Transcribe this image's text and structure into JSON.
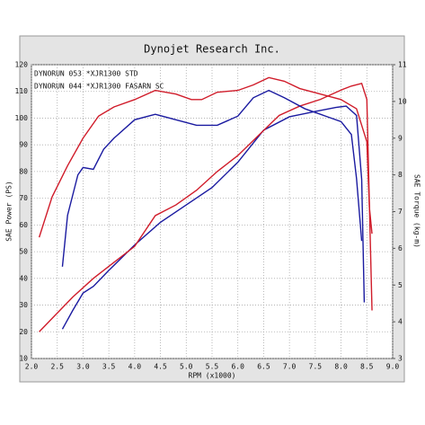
{
  "chart_data": {
    "type": "line",
    "title": "Dynojet Research Inc.",
    "x_label": "RPM (x1000)",
    "y_label": "SAE Power (PS)",
    "y2_label": "SAE Torque (kg-m)",
    "xlim": [
      2,
      9
    ],
    "ylim": [
      10,
      120
    ],
    "y2lim": [
      3,
      11
    ],
    "grid": true,
    "legend": "upper left",
    "xticks": [
      {
        "value": 2,
        "label": "2.0"
      },
      2.5,
      {
        "value": 3,
        "label": "3.0"
      },
      3.5,
      {
        "value": 4,
        "label": "4.0"
      },
      4.5,
      {
        "value": 5,
        "label": "5.0"
      },
      5.5,
      {
        "value": 6,
        "label": "6.0"
      },
      6.5,
      {
        "value": 7,
        "label": "7.0"
      },
      7.5,
      {
        "value": 8,
        "label": "8.0"
      },
      8.5,
      {
        "value": 9,
        "label": "9.0"
      }
    ],
    "yticks": [
      10,
      20,
      30,
      40,
      50,
      60,
      70,
      80,
      90,
      100,
      110,
      120
    ],
    "y2ticks": [
      3,
      4,
      5,
      6,
      7,
      8,
      9,
      10,
      11
    ],
    "series": [
      {
        "name": "DYNORUN 053  *XJR1300 STD",
        "color": "#1a1aa0",
        "axis": "y",
        "x": [
          2.6,
          2.8,
          3.0,
          3.2,
          3.5,
          4.0,
          4.5,
          5.0,
          5.5,
          6.0,
          6.5,
          7.0,
          7.5,
          7.9,
          8.1,
          8.3,
          8.4,
          8.45
        ],
        "values": [
          21,
          28,
          34.5,
          37,
          43,
          52.5,
          61,
          67.5,
          74,
          83.5,
          95.5,
          100.5,
          102.5,
          104,
          104.5,
          101,
          77,
          31
        ]
      },
      {
        "name": "DYNORUN 044  *XJR1300 FASARN SC",
        "color": "#d01c2a",
        "axis": "y",
        "x": [
          2.15,
          2.4,
          2.8,
          3.2,
          3.6,
          4.0,
          4.4,
          4.8,
          5.2,
          5.6,
          6.0,
          6.4,
          6.8,
          7.2,
          7.6,
          8.0,
          8.2,
          8.4,
          8.5,
          8.55,
          8.6
        ],
        "values": [
          20,
          25,
          33,
          40,
          46,
          52,
          63.5,
          67.5,
          73,
          80,
          86,
          93.5,
          101,
          104.5,
          107,
          110.5,
          112,
          113,
          107,
          67,
          28
        ]
      },
      {
        "color": "#1a1aa0",
        "axis": "y2",
        "x": [
          2.6,
          2.7,
          2.9,
          3.0,
          3.2,
          3.4,
          3.6,
          4.0,
          4.4,
          4.8,
          5.2,
          5.6,
          6.0,
          6.3,
          6.6,
          6.9,
          7.3,
          7.7,
          8.0,
          8.2,
          8.3,
          8.4
        ],
        "values": [
          5.5,
          6.9,
          8.0,
          8.2,
          8.15,
          8.7,
          9.0,
          9.5,
          9.65,
          9.5,
          9.35,
          9.35,
          9.6,
          10.1,
          10.3,
          10.1,
          9.8,
          9.6,
          9.45,
          9.1,
          7.9,
          6.2
        ]
      },
      {
        "color": "#d01c2a",
        "axis": "y2",
        "x": [
          2.15,
          2.4,
          2.7,
          3.0,
          3.3,
          3.6,
          4.0,
          4.4,
          4.8,
          5.1,
          5.3,
          5.6,
          6.0,
          6.3,
          6.6,
          6.9,
          7.2,
          7.6,
          8.0,
          8.3,
          8.5,
          8.55,
          8.6
        ],
        "values": [
          6.3,
          7.4,
          8.25,
          9.0,
          9.6,
          9.85,
          10.05,
          10.3,
          10.2,
          10.05,
          10.05,
          10.25,
          10.3,
          10.45,
          10.65,
          10.55,
          10.35,
          10.2,
          10.05,
          9.8,
          8.9,
          7.1,
          6.4
        ]
      }
    ]
  }
}
